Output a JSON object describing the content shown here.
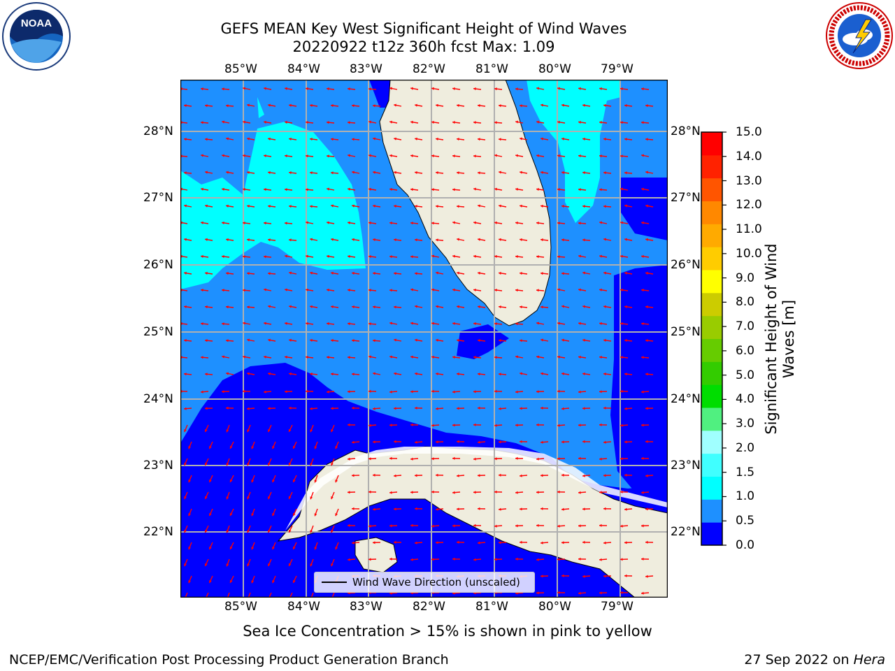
{
  "title_line1": "GEFS MEAN Key West Significant Height of Wind Waves",
  "title_line2": "20220922 t12z 360h fcst   Max: 1.09",
  "lon_labels": [
    "85°W",
    "84°W",
    "83°W",
    "82°W",
    "81°W",
    "80°W",
    "79°W"
  ],
  "lat_labels": [
    "28°N",
    "27°N",
    "26°N",
    "25°N",
    "24°N",
    "23°N",
    "22°N"
  ],
  "legend_label": "Wind Wave Direction (unscaled)",
  "colorbar": {
    "label": "Significant Height of Wind Waves [m]",
    "ticks": [
      "0.0",
      "0.5",
      "1.0",
      "1.5",
      "2.0",
      "3.0",
      "4.0",
      "5.0",
      "6.0",
      "7.0",
      "8.0",
      "9.0",
      "10.0",
      "11.0",
      "12.0",
      "13.0",
      "14.0",
      "15.0"
    ],
    "colors": [
      "#0000ff",
      "#1e90ff",
      "#00ffff",
      "#40ffff",
      "#a0ffff",
      "#50f080",
      "#00dd00",
      "#33cc00",
      "#66cc00",
      "#99cc00",
      "#cccc00",
      "#ffff00",
      "#ffcc00",
      "#ffaa00",
      "#ff8800",
      "#ff5500",
      "#ff2200",
      "#ff0000"
    ]
  },
  "sea_ice_note": "Sea Ice Concentration > 15% is shown in pink to yellow",
  "footer_left": "NCEP/EMC/Verification Post Processing Product Generation Branch",
  "footer_right_date": "27 Sep 2022 on ",
  "footer_right_host": "Hera",
  "logos": {
    "left": "NOAA",
    "right_text": "NATIONAL WEATHER SERVICE"
  },
  "map_colors": {
    "deep": "#0000ff",
    "mid": "#1e90ff",
    "cyan": "#00ffff",
    "land": "#efedde",
    "arrow": "#ff0000",
    "grid": "#b0b0b0"
  }
}
